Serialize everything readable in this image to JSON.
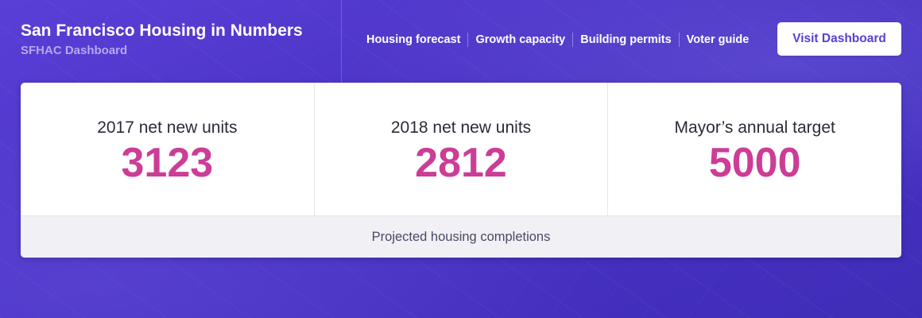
{
  "header": {
    "title": "San Francisco Housing in Numbers",
    "subtitle": "SFHAC Dashboard",
    "nav": [
      {
        "label": "Housing forecast"
      },
      {
        "label": "Growth capacity"
      },
      {
        "label": "Building permits"
      },
      {
        "label": "Voter guide"
      }
    ],
    "cta_label": "Visit Dashboard"
  },
  "stats": [
    {
      "label": "2017 net new units",
      "value": "3123"
    },
    {
      "label": "2018 net new units",
      "value": "2812"
    },
    {
      "label": "Mayor’s annual target",
      "value": "5000"
    }
  ],
  "footer": {
    "label": "Projected housing completions"
  },
  "colors": {
    "background": "#4a32c4",
    "stat_value": "#cc3d96",
    "button_text": "#5b3fd1"
  }
}
